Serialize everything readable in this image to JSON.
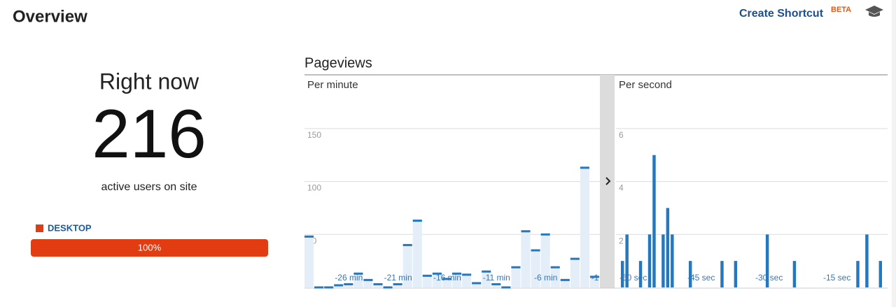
{
  "header": {
    "title": "Overview",
    "shortcut": "Create Shortcut",
    "badge": "BETA"
  },
  "right_now": {
    "title": "Right now",
    "count": 216,
    "caption": "active users on site"
  },
  "devices": {
    "series": [
      {
        "name": "DESKTOP",
        "color": "#e23d12",
        "value": 100,
        "value_label": "100%"
      }
    ]
  },
  "pageviews_title": "Pageviews",
  "chart_data": [
    {
      "type": "bar",
      "title": "Per minute",
      "color": "#2378c0",
      "fill_color": "#e3eef8",
      "grid": true,
      "categories": [
        null,
        null,
        null,
        null,
        "-26 min",
        null,
        null,
        null,
        null,
        "-21 min",
        null,
        null,
        null,
        null,
        "-16 min",
        null,
        null,
        null,
        null,
        "-11 min",
        null,
        null,
        null,
        null,
        "-6 min",
        null,
        null,
        null,
        null,
        "-1"
      ],
      "values": [
        49,
        1,
        1,
        3,
        4,
        14,
        8,
        4,
        1,
        4,
        41,
        64,
        12,
        14,
        9,
        14,
        13,
        5,
        16,
        4,
        1,
        20,
        54,
        36,
        51,
        20,
        8,
        28,
        114,
        11
      ],
      "ylim": [
        0,
        175
      ],
      "yticks": [
        50,
        100,
        150
      ]
    },
    {
      "type": "bar",
      "title": "Per second",
      "color": "#2378c0",
      "grid": true,
      "categories": [
        "-60 sec",
        null,
        null,
        null,
        null,
        null,
        null,
        null,
        null,
        null,
        null,
        null,
        null,
        null,
        null,
        "-45 sec",
        null,
        null,
        null,
        null,
        null,
        null,
        null,
        null,
        null,
        null,
        null,
        null,
        null,
        null,
        "-30 sec",
        null,
        null,
        null,
        null,
        null,
        null,
        null,
        null,
        null,
        null,
        null,
        null,
        null,
        null,
        "-15 sec",
        null,
        null,
        null,
        null,
        null,
        null,
        null,
        null,
        null,
        null,
        null,
        null,
        null,
        null
      ],
      "values": [
        0,
        1,
        2,
        0,
        0,
        1,
        0,
        2,
        5,
        0,
        2,
        3,
        2,
        0,
        0,
        0,
        1,
        0,
        0,
        0,
        0,
        0,
        0,
        1,
        0,
        0,
        1,
        0,
        0,
        0,
        0,
        0,
        0,
        2,
        0,
        0,
        0,
        0,
        0,
        1,
        0,
        0,
        0,
        0,
        0,
        0,
        0,
        0,
        0,
        0,
        0,
        0,
        0,
        1,
        0,
        2,
        0,
        0,
        1,
        0
      ],
      "ylim": [
        0,
        7
      ],
      "yticks": [
        2,
        4,
        6
      ]
    }
  ]
}
